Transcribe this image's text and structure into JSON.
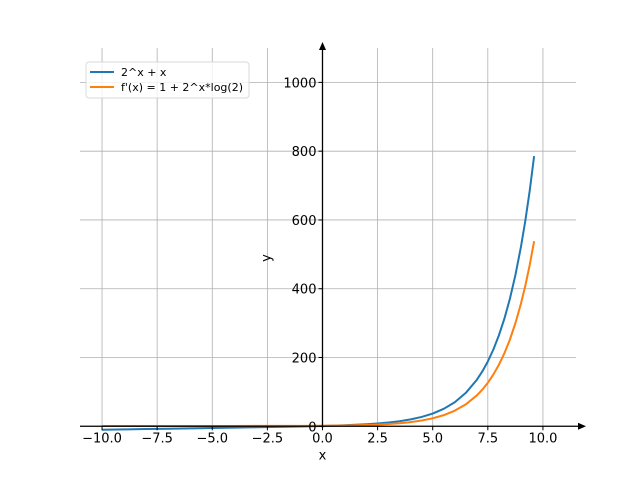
{
  "chart_data": {
    "type": "line",
    "title": "",
    "xlabel": "x",
    "ylabel": "y",
    "xlim": [
      -11,
      11.5
    ],
    "ylim": [
      -5,
      1100
    ],
    "grid": true,
    "legend_position": "top-left",
    "x_ticks": [
      -10.0,
      -7.5,
      -5.0,
      -2.5,
      0.0,
      2.5,
      5.0,
      7.5,
      10.0
    ],
    "x_tick_labels": [
      "−10.0",
      "−7.5",
      "−5.0",
      "−2.5",
      "0.0",
      "2.5",
      "5.0",
      "7.5",
      "10.0"
    ],
    "y_ticks": [
      0,
      200,
      400,
      600,
      800,
      1000
    ],
    "y_tick_labels": [
      "0",
      "200",
      "400",
      "600",
      "800",
      "1000"
    ],
    "series": [
      {
        "name": "2^x + x",
        "color": "#1f77b4",
        "x": [
          -10,
          -9,
          -8,
          -7,
          -6,
          -5,
          -4,
          -3,
          -2,
          -1,
          0,
          0.5,
          1,
          1.5,
          2,
          2.5,
          3,
          3.5,
          4,
          4.5,
          5,
          5.5,
          6,
          6.5,
          7,
          7.25,
          7.5,
          7.75,
          8,
          8.25,
          8.5,
          8.75,
          9,
          9.2,
          9.4,
          9.6
        ],
        "y": [
          -10.0,
          -9.0,
          -8.0,
          -7.0,
          -6.0,
          -5.0,
          -3.9,
          -2.9,
          -1.8,
          -0.5,
          1.0,
          1.9,
          3.0,
          4.3,
          6.0,
          8.2,
          11.0,
          14.8,
          20.0,
          27.1,
          37.0,
          50.8,
          70.0,
          97.0,
          135.0,
          159.4,
          188.5,
          222.9,
          264.0,
          312.7,
          370.5,
          439.3,
          521.0,
          597.3,
          684.9,
          785.5
        ]
      },
      {
        "name": "f'(x) = 1 + 2^x*log(2)",
        "color": "#ff7f0e",
        "x": [
          -10,
          -9,
          -8,
          -7,
          -6,
          -5,
          -4,
          -3,
          -2,
          -1,
          0,
          0.5,
          1,
          1.5,
          2,
          2.5,
          3,
          3.5,
          4,
          4.5,
          5,
          5.5,
          6,
          6.5,
          7,
          7.25,
          7.5,
          7.75,
          8,
          8.25,
          8.5,
          8.75,
          9,
          9.2,
          9.4,
          9.6
        ],
        "y": [
          1.0,
          1.0,
          1.0,
          1.0,
          1.0,
          1.0,
          1.0,
          1.1,
          1.2,
          1.3,
          1.7,
          2.0,
          2.4,
          3.0,
          3.8,
          4.9,
          6.5,
          8.8,
          12.1,
          16.7,
          23.2,
          32.4,
          45.4,
          63.7,
          89.7,
          106.4,
          126.5,
          150.4,
          178.4,
          212.1,
          252.0,
          299.6,
          355.9,
          408.6,
          468.9,
          538.2
        ]
      }
    ]
  }
}
